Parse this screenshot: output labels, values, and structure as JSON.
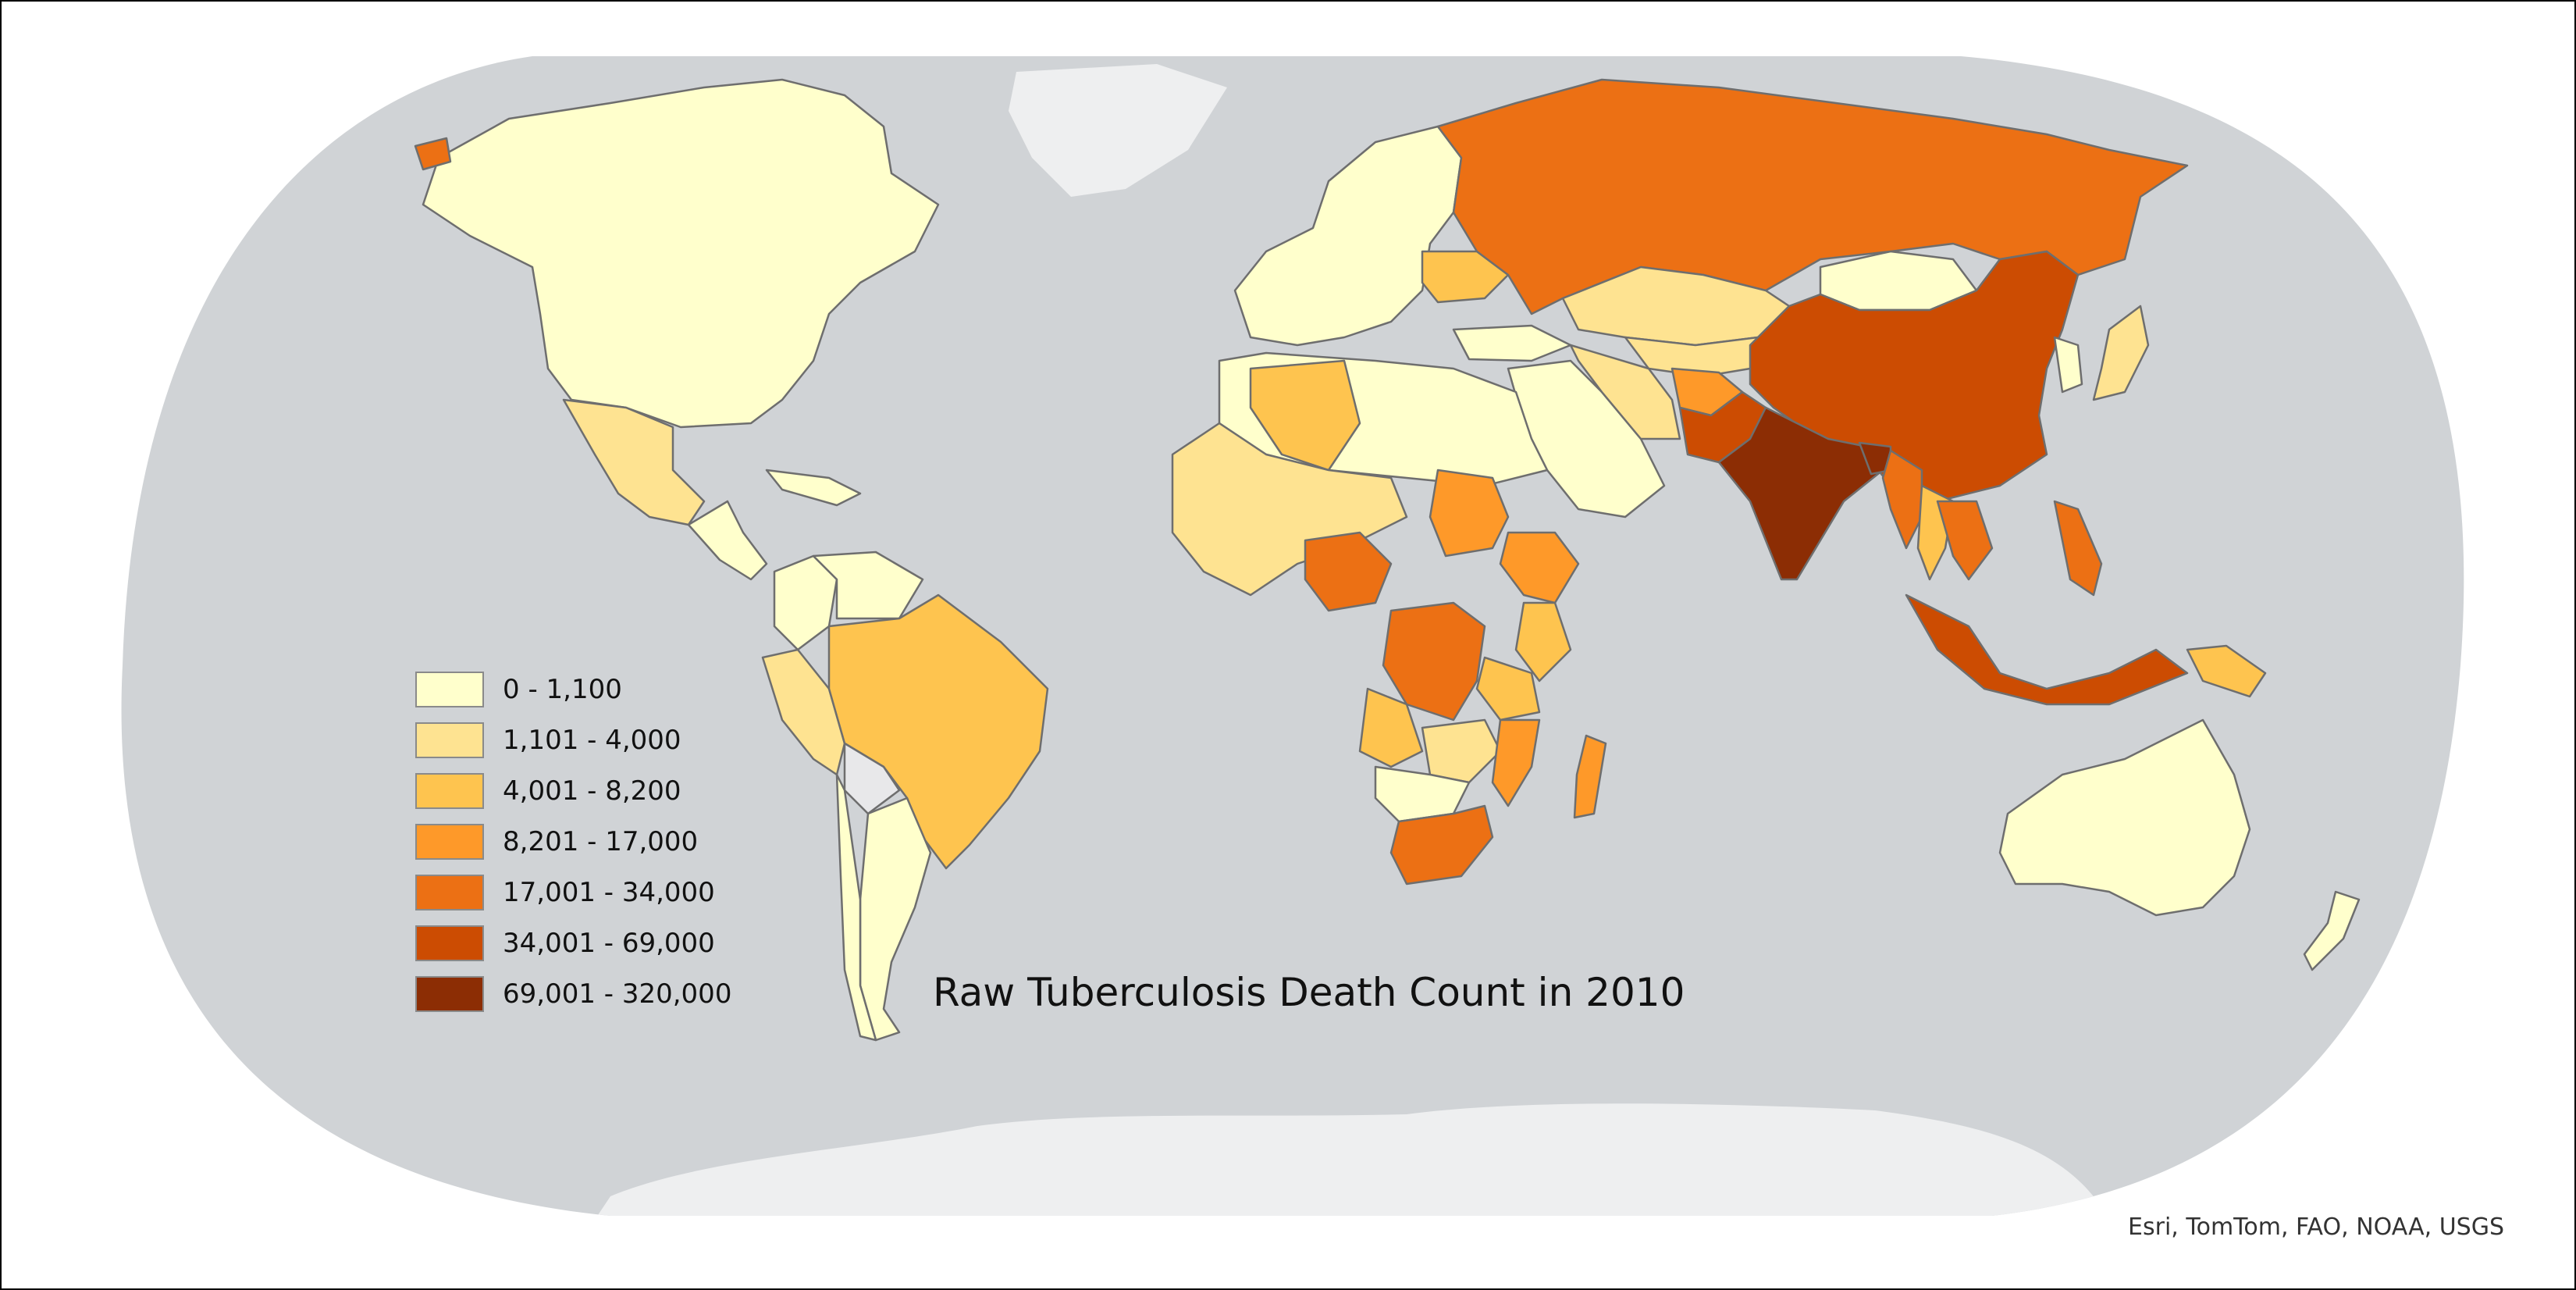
{
  "title": "Raw Tuberculosis Death Count in 2010",
  "credit": "Esri, TomTom, FAO, NOAA, USGS",
  "colors": {
    "background": "#ffffff",
    "ocean": "#d0d3d6",
    "ice": "#eeeff0",
    "no_data": "#e8e8ea",
    "border": "#6e6e6e"
  },
  "legend": [
    {
      "label": "0 - 1,100",
      "color": "#ffffcc"
    },
    {
      "label": "1,101 - 4,000",
      "color": "#fee391"
    },
    {
      "label": "4,001 - 8,200",
      "color": "#fec44f"
    },
    {
      "label": "8,201 - 17,000",
      "color": "#fe9929"
    },
    {
      "label": "17,001 - 34,000",
      "color": "#ec7014"
    },
    {
      "label": "34,001 - 69,000",
      "color": "#cc4c02"
    },
    {
      "label": "69,001 - 320,000",
      "color": "#8c2d04"
    }
  ],
  "regions": [
    {
      "name": "North America",
      "class": 0
    },
    {
      "name": "Greenland",
      "class": -1
    },
    {
      "name": "Alaska (Russia east tip)",
      "class": 4
    },
    {
      "name": "Mexico",
      "class": 1
    },
    {
      "name": "Central America",
      "class": 0
    },
    {
      "name": "Caribbean",
      "class": 0
    },
    {
      "name": "Colombia",
      "class": 0
    },
    {
      "name": "Venezuela",
      "class": 0
    },
    {
      "name": "Peru",
      "class": 1
    },
    {
      "name": "Brazil",
      "class": 2
    },
    {
      "name": "Bolivia",
      "class": -1
    },
    {
      "name": "Argentina",
      "class": 0
    },
    {
      "name": "Chile",
      "class": 0
    },
    {
      "name": "Europe",
      "class": 0
    },
    {
      "name": "Ukraine",
      "class": 2
    },
    {
      "name": "Russia",
      "class": 4
    },
    {
      "name": "Kazakhstan",
      "class": 1
    },
    {
      "name": "Central Asia",
      "class": 1
    },
    {
      "name": "Mongolia",
      "class": 0
    },
    {
      "name": "China",
      "class": 5
    },
    {
      "name": "Afghanistan",
      "class": 3
    },
    {
      "name": "Pakistan",
      "class": 5
    },
    {
      "name": "India",
      "class": 6
    },
    {
      "name": "Bangladesh",
      "class": 6
    },
    {
      "name": "Myanmar",
      "class": 4
    },
    {
      "name": "Thailand",
      "class": 2
    },
    {
      "name": "Vietnam",
      "class": 4
    },
    {
      "name": "Middle East",
      "class": 0
    },
    {
      "name": "Iran",
      "class": 1
    },
    {
      "name": "Turkey",
      "class": 0
    },
    {
      "name": "Korea",
      "class": 0
    },
    {
      "name": "Japan",
      "class": 1
    },
    {
      "name": "Philippines",
      "class": 4
    },
    {
      "name": "Indonesia",
      "class": 5
    },
    {
      "name": "Papua New Guinea",
      "class": 2
    },
    {
      "name": "Australia",
      "class": 0
    },
    {
      "name": "New Zealand",
      "class": 0
    },
    {
      "name": "North Africa",
      "class": 0
    },
    {
      "name": "Algeria",
      "class": 2
    },
    {
      "name": "West Africa",
      "class": 1
    },
    {
      "name": "Nigeria",
      "class": 4
    },
    {
      "name": "Sudan",
      "class": 3
    },
    {
      "name": "Ethiopia",
      "class": 3
    },
    {
      "name": "Kenya",
      "class": 2
    },
    {
      "name": "DR Congo",
      "class": 4
    },
    {
      "name": "Angola",
      "class": 2
    },
    {
      "name": "Tanzania",
      "class": 2
    },
    {
      "name": "Mozambique",
      "class": 3
    },
    {
      "name": "Zambia / Zimbabwe",
      "class": 1
    },
    {
      "name": "Namibia / Botswana",
      "class": 0
    },
    {
      "name": "South Africa",
      "class": 4
    },
    {
      "name": "Madagascar",
      "class": 3
    },
    {
      "name": "Antarctica",
      "class": -1
    }
  ]
}
